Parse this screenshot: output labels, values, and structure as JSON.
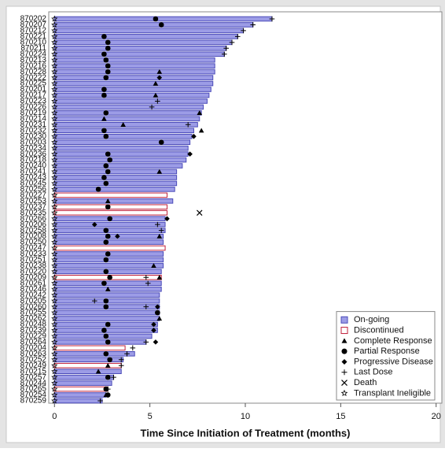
{
  "chart_data": {
    "type": "swimmer",
    "x_label": "Time Since Initiation of Treatment (months)",
    "xlim": [
      -0.3,
      20.3
    ],
    "xticks": [
      0,
      5,
      10,
      15,
      20
    ],
    "bar_series": [
      {
        "name": "On-going",
        "fill": "#9c9ce6",
        "stroke": "#4a4ab8"
      },
      {
        "name": "Discontinued",
        "fill": "#ffffff",
        "stroke": "#c0203a"
      }
    ],
    "bars": [
      {
        "id": "870202",
        "months": 11.4,
        "status": "On-going"
      },
      {
        "id": "870207",
        "months": 10.4,
        "status": "On-going"
      },
      {
        "id": "870212",
        "months": 9.9,
        "status": "On-going"
      },
      {
        "id": "870221",
        "months": 9.6,
        "status": "On-going"
      },
      {
        "id": "870210",
        "months": 9.3,
        "status": "On-going"
      },
      {
        "id": "870211",
        "months": 9.0,
        "status": "On-going"
      },
      {
        "id": "870224",
        "months": 8.9,
        "status": "On-going"
      },
      {
        "id": "870213",
        "months": 8.4,
        "status": "On-going"
      },
      {
        "id": "870216",
        "months": 8.4,
        "status": "On-going"
      },
      {
        "id": "870228",
        "months": 8.4,
        "status": "On-going"
      },
      {
        "id": "870222",
        "months": 8.3,
        "status": "On-going"
      },
      {
        "id": "870225",
        "months": 8.3,
        "status": "On-going"
      },
      {
        "id": "870201",
        "months": 8.2,
        "status": "On-going"
      },
      {
        "id": "870217",
        "months": 8.1,
        "status": "On-going"
      },
      {
        "id": "870223",
        "months": 8.0,
        "status": "On-going"
      },
      {
        "id": "870226",
        "months": 7.8,
        "status": "On-going"
      },
      {
        "id": "870219",
        "months": 7.7,
        "status": "On-going"
      },
      {
        "id": "870214",
        "months": 7.6,
        "status": "On-going"
      },
      {
        "id": "870231",
        "months": 7.5,
        "status": "On-going"
      },
      {
        "id": "870232",
        "months": 7.3,
        "status": "On-going"
      },
      {
        "id": "870230",
        "months": 7.2,
        "status": "On-going"
      },
      {
        "id": "870203",
        "months": 7.1,
        "status": "On-going"
      },
      {
        "id": "870234",
        "months": 7.0,
        "status": "On-going"
      },
      {
        "id": "870236",
        "months": 7.0,
        "status": "On-going"
      },
      {
        "id": "870218",
        "months": 6.9,
        "status": "On-going"
      },
      {
        "id": "870240",
        "months": 6.7,
        "status": "On-going"
      },
      {
        "id": "870241",
        "months": 6.4,
        "status": "On-going"
      },
      {
        "id": "870243",
        "months": 6.4,
        "status": "On-going"
      },
      {
        "id": "870245",
        "months": 6.4,
        "status": "On-going"
      },
      {
        "id": "870256",
        "months": 6.3,
        "status": "On-going"
      },
      {
        "id": "870227",
        "months": 5.9,
        "status": "Discontinued"
      },
      {
        "id": "870253",
        "months": 6.2,
        "status": "On-going"
      },
      {
        "id": "870237",
        "months": 5.9,
        "status": "Discontinued"
      },
      {
        "id": "870235",
        "months": 5.9,
        "status": "Discontinued"
      },
      {
        "id": "870266",
        "months": 5.8,
        "status": "On-going"
      },
      {
        "id": "870206",
        "months": 5.8,
        "status": "On-going"
      },
      {
        "id": "870258",
        "months": 5.8,
        "status": "On-going"
      },
      {
        "id": "870208",
        "months": 5.7,
        "status": "On-going"
      },
      {
        "id": "870250",
        "months": 5.7,
        "status": "On-going"
      },
      {
        "id": "870247",
        "months": 5.8,
        "status": "Discontinued"
      },
      {
        "id": "870233",
        "months": 5.7,
        "status": "On-going"
      },
      {
        "id": "870251",
        "months": 5.7,
        "status": "On-going"
      },
      {
        "id": "870238",
        "months": 5.7,
        "status": "On-going"
      },
      {
        "id": "870220",
        "months": 5.6,
        "status": "On-going"
      },
      {
        "id": "870209",
        "months": 5.6,
        "status": "Discontinued"
      },
      {
        "id": "870261",
        "months": 5.6,
        "status": "On-going"
      },
      {
        "id": "870246",
        "months": 5.6,
        "status": "On-going"
      },
      {
        "id": "870242",
        "months": 5.5,
        "status": "On-going"
      },
      {
        "id": "870205",
        "months": 5.5,
        "status": "On-going"
      },
      {
        "id": "870260",
        "months": 5.5,
        "status": "On-going"
      },
      {
        "id": "870255",
        "months": 5.5,
        "status": "On-going"
      },
      {
        "id": "870262",
        "months": 5.5,
        "status": "On-going"
      },
      {
        "id": "870248",
        "months": 5.4,
        "status": "On-going"
      },
      {
        "id": "870239",
        "months": 5.4,
        "status": "On-going"
      },
      {
        "id": "870229",
        "months": 5.1,
        "status": "On-going"
      },
      {
        "id": "870264",
        "months": 4.8,
        "status": "On-going"
      },
      {
        "id": "870204",
        "months": 3.7,
        "status": "Discontinued"
      },
      {
        "id": "870263",
        "months": 4.2,
        "status": "On-going"
      },
      {
        "id": "870252",
        "months": 3.6,
        "status": "On-going"
      },
      {
        "id": "870249",
        "months": 3.5,
        "status": "Discontinued"
      },
      {
        "id": "870215",
        "months": 3.5,
        "status": "On-going"
      },
      {
        "id": "870257",
        "months": 3.1,
        "status": "On-going"
      },
      {
        "id": "870244",
        "months": 3.0,
        "status": "On-going"
      },
      {
        "id": "870265",
        "months": 2.8,
        "status": "Discontinued"
      },
      {
        "id": "870254",
        "months": 2.7,
        "status": "On-going"
      },
      {
        "id": "870259",
        "months": 2.5,
        "status": "On-going"
      }
    ],
    "series": [
      {
        "name": "Complete Response",
        "symbol": "triangle",
        "points": [
          {
            "y": "870228",
            "x": 5.5
          },
          {
            "y": "870225",
            "x": 5.3
          },
          {
            "y": "870217",
            "x": 5.3
          },
          {
            "y": "870219",
            "x": 7.6
          },
          {
            "y": "870214",
            "x": 2.6
          },
          {
            "y": "870231",
            "x": 3.6
          },
          {
            "y": "870232",
            "x": 7.7
          },
          {
            "y": "870241",
            "x": 5.5
          },
          {
            "y": "870253",
            "x": 2.8
          },
          {
            "y": "870208",
            "x": 5.5
          },
          {
            "y": "870238",
            "x": 5.2
          },
          {
            "y": "870209",
            "x": 5.5
          },
          {
            "y": "870246",
            "x": 2.8
          },
          {
            "y": "870262",
            "x": 5.5
          },
          {
            "y": "870249",
            "x": 2.8
          },
          {
            "y": "870215",
            "x": 2.3
          },
          {
            "y": "870254",
            "x": 2.7
          }
        ]
      },
      {
        "name": "Partial Response",
        "symbol": "circle",
        "points": [
          {
            "y": "870202",
            "x": 5.3
          },
          {
            "y": "870207",
            "x": 5.6
          },
          {
            "y": "870221",
            "x": 2.6
          },
          {
            "y": "870210",
            "x": 2.8
          },
          {
            "y": "870211",
            "x": 2.8
          },
          {
            "y": "870224",
            "x": 2.6
          },
          {
            "y": "870213",
            "x": 2.7
          },
          {
            "y": "870216",
            "x": 2.8
          },
          {
            "y": "870228",
            "x": 2.8
          },
          {
            "y": "870222",
            "x": 2.7
          },
          {
            "y": "870201",
            "x": 2.6
          },
          {
            "y": "870217",
            "x": 2.6
          },
          {
            "y": "870219",
            "x": 2.7
          },
          {
            "y": "870232",
            "x": 2.6
          },
          {
            "y": "870230",
            "x": 2.7
          },
          {
            "y": "870203",
            "x": 5.6
          },
          {
            "y": "870236",
            "x": 2.8
          },
          {
            "y": "870218",
            "x": 2.9
          },
          {
            "y": "870240",
            "x": 2.7
          },
          {
            "y": "870241",
            "x": 2.8
          },
          {
            "y": "870243",
            "x": 2.6
          },
          {
            "y": "870245",
            "x": 2.7
          },
          {
            "y": "870256",
            "x": 2.3
          },
          {
            "y": "870237",
            "x": 2.8
          },
          {
            "y": "870266",
            "x": 2.9
          },
          {
            "y": "870258",
            "x": 2.7
          },
          {
            "y": "870208",
            "x": 2.8
          },
          {
            "y": "870250",
            "x": 2.7
          },
          {
            "y": "870233",
            "x": 2.8
          },
          {
            "y": "870251",
            "x": 2.7
          },
          {
            "y": "870220",
            "x": 2.7
          },
          {
            "y": "870209",
            "x": 2.9
          },
          {
            "y": "870261",
            "x": 2.6
          },
          {
            "y": "870205",
            "x": 2.7
          },
          {
            "y": "870260",
            "x": 2.7
          },
          {
            "y": "870255",
            "x": 5.4
          },
          {
            "y": "870248",
            "x": 2.8
          },
          {
            "y": "870239",
            "x": 2.6
          },
          {
            "y": "870229",
            "x": 2.7
          },
          {
            "y": "870264",
            "x": 2.8
          },
          {
            "y": "870263",
            "x": 2.7
          },
          {
            "y": "870252",
            "x": 2.9
          },
          {
            "y": "870257",
            "x": 2.8
          },
          {
            "y": "870265",
            "x": 2.7
          },
          {
            "y": "870254",
            "x": 2.8
          }
        ]
      },
      {
        "name": "Progressive Disease",
        "symbol": "diamond",
        "points": [
          {
            "y": "870222",
            "x": 5.5
          },
          {
            "y": "870230",
            "x": 7.3
          },
          {
            "y": "870236",
            "x": 7.1
          },
          {
            "y": "870266",
            "x": 5.9
          },
          {
            "y": "870206",
            "x": 2.1
          },
          {
            "y": "870208",
            "x": 3.3
          },
          {
            "y": "870260",
            "x": 5.4
          },
          {
            "y": "870255",
            "x": 5.4
          },
          {
            "y": "870248",
            "x": 5.2
          },
          {
            "y": "870239",
            "x": 5.2
          },
          {
            "y": "870264",
            "x": 5.3
          }
        ]
      },
      {
        "name": "Last Dose",
        "symbol": "plus",
        "points": [
          {
            "y": "870202",
            "x": 11.4
          },
          {
            "y": "870207",
            "x": 10.4
          },
          {
            "y": "870212",
            "x": 9.9
          },
          {
            "y": "870221",
            "x": 9.6
          },
          {
            "y": "870210",
            "x": 9.3
          },
          {
            "y": "870211",
            "x": 9.0
          },
          {
            "y": "870224",
            "x": 8.9
          },
          {
            "y": "870223",
            "x": 5.4
          },
          {
            "y": "870226",
            "x": 5.1
          },
          {
            "y": "870231",
            "x": 7.0
          },
          {
            "y": "870206",
            "x": 5.4
          },
          {
            "y": "870258",
            "x": 5.6
          },
          {
            "y": "870209",
            "x": 4.8
          },
          {
            "y": "870261",
            "x": 4.9
          },
          {
            "y": "870205",
            "x": 2.1
          },
          {
            "y": "870260",
            "x": 4.8
          },
          {
            "y": "870264",
            "x": 4.8
          },
          {
            "y": "870204",
            "x": 4.1
          },
          {
            "y": "870263",
            "x": 3.8
          },
          {
            "y": "870252",
            "x": 3.5
          },
          {
            "y": "870249",
            "x": 3.5
          },
          {
            "y": "870257",
            "x": 3.1
          },
          {
            "y": "870265",
            "x": 2.8
          },
          {
            "y": "870259",
            "x": 2.4
          }
        ]
      },
      {
        "name": "Death",
        "symbol": "cross",
        "points": [
          {
            "y": "870235",
            "x": 7.6
          }
        ]
      },
      {
        "name": "Transplant Ineligible",
        "symbol": "star",
        "points": [
          {
            "y": "870202",
            "x": 0
          },
          {
            "y": "870207",
            "x": 0
          },
          {
            "y": "870212",
            "x": 0
          },
          {
            "y": "870221",
            "x": 0
          },
          {
            "y": "870210",
            "x": 0
          },
          {
            "y": "870211",
            "x": 0
          },
          {
            "y": "870224",
            "x": 0
          },
          {
            "y": "870213",
            "x": 0
          },
          {
            "y": "870216",
            "x": 0
          },
          {
            "y": "870228",
            "x": 0
          },
          {
            "y": "870222",
            "x": 0
          },
          {
            "y": "870225",
            "x": 0
          },
          {
            "y": "870201",
            "x": 0
          },
          {
            "y": "870217",
            "x": 0
          },
          {
            "y": "870223",
            "x": 0
          },
          {
            "y": "870226",
            "x": 0
          },
          {
            "y": "870219",
            "x": 0
          },
          {
            "y": "870214",
            "x": 0
          },
          {
            "y": "870231",
            "x": 0
          },
          {
            "y": "870232",
            "x": 0
          },
          {
            "y": "870230",
            "x": 0
          },
          {
            "y": "870203",
            "x": 0
          },
          {
            "y": "870234",
            "x": 0
          },
          {
            "y": "870236",
            "x": 0
          },
          {
            "y": "870218",
            "x": 0
          },
          {
            "y": "870240",
            "x": 0
          },
          {
            "y": "870241",
            "x": 0
          },
          {
            "y": "870243",
            "x": 0
          },
          {
            "y": "870245",
            "x": 0
          },
          {
            "y": "870256",
            "x": 0
          },
          {
            "y": "870227",
            "x": 0
          },
          {
            "y": "870253",
            "x": 0
          },
          {
            "y": "870237",
            "x": 0
          },
          {
            "y": "870235",
            "x": 0
          },
          {
            "y": "870266",
            "x": 0
          },
          {
            "y": "870206",
            "x": 0
          },
          {
            "y": "870258",
            "x": 0
          },
          {
            "y": "870208",
            "x": 0
          },
          {
            "y": "870250",
            "x": 0
          },
          {
            "y": "870247",
            "x": 0
          },
          {
            "y": "870233",
            "x": 0
          },
          {
            "y": "870251",
            "x": 0
          },
          {
            "y": "870238",
            "x": 0
          },
          {
            "y": "870220",
            "x": 0
          },
          {
            "y": "870209",
            "x": 0
          },
          {
            "y": "870261",
            "x": 0
          },
          {
            "y": "870246",
            "x": 0
          },
          {
            "y": "870242",
            "x": 0
          },
          {
            "y": "870205",
            "x": 0
          },
          {
            "y": "870260",
            "x": 0
          },
          {
            "y": "870255",
            "x": 0
          },
          {
            "y": "870262",
            "x": 0
          },
          {
            "y": "870248",
            "x": 0
          },
          {
            "y": "870239",
            "x": 0
          },
          {
            "y": "870229",
            "x": 0
          },
          {
            "y": "870264",
            "x": 0
          },
          {
            "y": "870204",
            "x": 0
          },
          {
            "y": "870263",
            "x": 0
          },
          {
            "y": "870252",
            "x": 0
          },
          {
            "y": "870249",
            "x": 0
          },
          {
            "y": "870215",
            "x": 0
          },
          {
            "y": "870257",
            "x": 0
          },
          {
            "y": "870244",
            "x": 0
          },
          {
            "y": "870265",
            "x": 0
          },
          {
            "y": "870254",
            "x": 0
          },
          {
            "y": "870259",
            "x": 0
          }
        ]
      }
    ]
  }
}
